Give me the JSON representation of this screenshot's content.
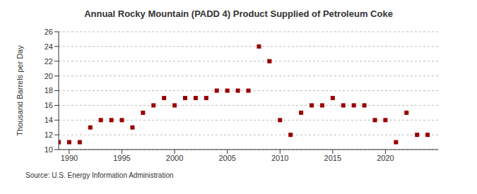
{
  "chart_data": {
    "type": "scatter",
    "title": "Annual Rocky Mountain (PADD 4) Product Supplied of Petroleum Coke",
    "y_label": "Thousand Barrels per Day",
    "source": "Source: U.S. Energy Information Administration",
    "x": [
      1989,
      1990,
      1991,
      1992,
      1993,
      1994,
      1995,
      1996,
      1997,
      1998,
      1999,
      2000,
      2001,
      2002,
      2003,
      2004,
      2005,
      2006,
      2007,
      2008,
      2009,
      2010,
      2011,
      2012,
      2013,
      2014,
      2015,
      2016,
      2017,
      2018,
      2019,
      2020,
      2021,
      2022,
      2023,
      2024
    ],
    "values": [
      11,
      11,
      11,
      13,
      14,
      14,
      14,
      13,
      15,
      16,
      17,
      16,
      17,
      17,
      17,
      18,
      18,
      18,
      18,
      24,
      22,
      14,
      12,
      15,
      16,
      16,
      17,
      16,
      16,
      16,
      14,
      14,
      11,
      15,
      12,
      12
    ],
    "color": "#990000",
    "marker": "square",
    "xlim": [
      1989,
      2025
    ],
    "xticks": [
      1990,
      1995,
      2000,
      2005,
      2010,
      2015,
      2020
    ],
    "ylim": [
      10,
      26
    ],
    "yticks": [
      10,
      12,
      14,
      16,
      18,
      20,
      22,
      24,
      26
    ],
    "grid": true
  }
}
